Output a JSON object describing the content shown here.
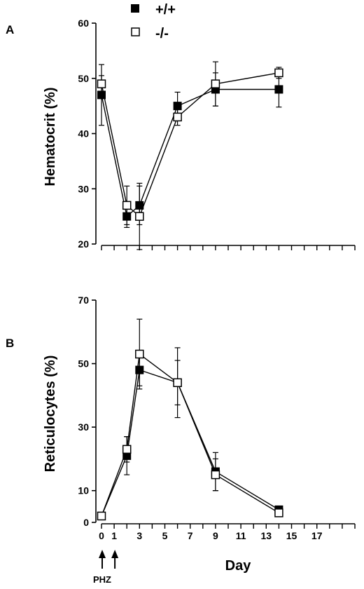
{
  "legend": [
    {
      "marker": "filled",
      "label": "+/+"
    },
    {
      "marker": "open",
      "label": "-/-"
    }
  ],
  "annotation": {
    "label": "PHZ",
    "arrow_days": [
      0,
      1
    ]
  },
  "colors": {
    "ink": "#000000",
    "background": "#ffffff"
  },
  "chart_data": [
    {
      "type": "line",
      "panel_label": "A",
      "ylabel": "Hematocrit (%)",
      "xlabel": "",
      "ylim": [
        20,
        60
      ],
      "yticks": [
        20,
        30,
        40,
        50,
        60
      ],
      "xlim": [
        0,
        20
      ],
      "xtick_labels_shown": false,
      "series": [
        {
          "name": "+/+",
          "marker": "filled",
          "x": [
            0,
            2,
            3,
            6,
            9,
            14
          ],
          "y": [
            47,
            25,
            27,
            45,
            48,
            48
          ],
          "err": [
            5.5,
            2,
            3.5,
            2.5,
            3,
            3.2
          ]
        },
        {
          "name": "-/-",
          "marker": "open",
          "x": [
            0,
            2,
            3,
            6,
            9,
            14
          ],
          "y": [
            49,
            27,
            25,
            43,
            49,
            51
          ],
          "err": [
            1.5,
            3.5,
            6,
            1.5,
            4,
            1
          ]
        }
      ]
    },
    {
      "type": "line",
      "panel_label": "B",
      "ylabel": "Reticulocytes (%)",
      "xlabel": "Day",
      "ylim": [
        0,
        70
      ],
      "yticks": [
        0,
        10,
        30,
        50,
        70
      ],
      "xlim": [
        0,
        20
      ],
      "xticks": [
        0,
        1,
        3,
        5,
        7,
        9,
        11,
        13,
        15,
        17
      ],
      "series": [
        {
          "name": "+/+",
          "marker": "filled",
          "x": [
            0,
            2,
            3,
            6,
            9,
            14
          ],
          "y": [
            2,
            21,
            48,
            44,
            16,
            4
          ],
          "err": [
            1,
            6,
            5,
            11,
            6,
            1
          ]
        },
        {
          "name": "-/-",
          "marker": "open",
          "x": [
            0,
            2,
            3,
            6,
            9,
            14
          ],
          "y": [
            2,
            23,
            53,
            44,
            15,
            3
          ],
          "err": [
            1,
            4,
            11,
            7,
            5,
            0.8
          ]
        }
      ]
    }
  ]
}
